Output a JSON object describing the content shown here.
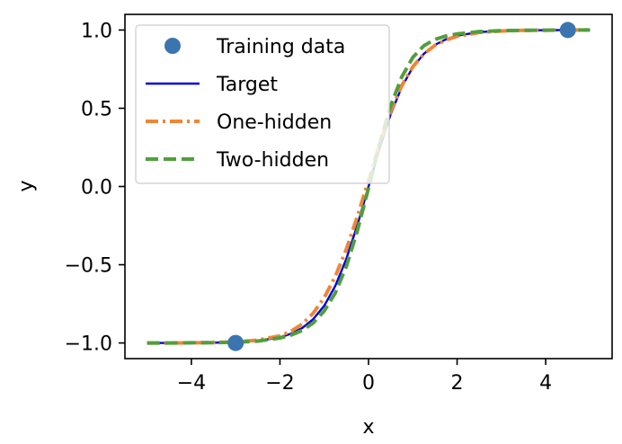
{
  "chart_data": {
    "type": "line",
    "xlabel": "x",
    "ylabel": "y",
    "xlim": [
      -5.5,
      5.5
    ],
    "ylim": [
      -1.1,
      1.1
    ],
    "xticks": [
      -4,
      -2,
      0,
      2,
      4
    ],
    "xtick_labels": [
      "−4",
      "−2",
      "0",
      "2",
      "4"
    ],
    "yticks": [
      -1.0,
      -0.5,
      0.0,
      0.5,
      1.0
    ],
    "ytick_labels": [
      "−1.0",
      "−0.5",
      "0.0",
      "0.5",
      "1.0"
    ],
    "grid": false,
    "legend_position": "upper-left",
    "series": [
      {
        "name": "Training data",
        "kind": "scatter",
        "color": "#3b75af",
        "x": [
          -3.0,
          4.5
        ],
        "y": [
          -1.0,
          1.0
        ]
      },
      {
        "name": "Target",
        "kind": "line",
        "style": "solid",
        "color": "#0000dd",
        "x": [
          -5,
          -4.5,
          -4,
          -3.5,
          -3,
          -2.5,
          -2,
          -1.75,
          -1.5,
          -1.25,
          -1,
          -0.75,
          -0.5,
          -0.25,
          0,
          0.25,
          0.5,
          0.75,
          1,
          1.25,
          1.5,
          1.75,
          2,
          2.5,
          3,
          3.5,
          4,
          4.5,
          5
        ],
        "y": [
          -1.0,
          -1.0,
          -0.999,
          -0.998,
          -0.995,
          -0.987,
          -0.964,
          -0.941,
          -0.905,
          -0.848,
          -0.762,
          -0.635,
          -0.462,
          -0.245,
          0.0,
          0.245,
          0.462,
          0.635,
          0.762,
          0.848,
          0.905,
          0.941,
          0.964,
          0.987,
          0.995,
          0.998,
          0.999,
          1.0,
          1.0
        ]
      },
      {
        "name": "One-hidden",
        "kind": "line",
        "style": "dashdot",
        "color": "#ef8636",
        "x": [
          -5,
          -4.5,
          -4,
          -3.5,
          -3,
          -2.5,
          -2,
          -1.75,
          -1.5,
          -1.25,
          -1,
          -0.75,
          -0.5,
          -0.25,
          0,
          0.25,
          0.5,
          0.75,
          1,
          1.25,
          1.5,
          1.75,
          2,
          2.5,
          3,
          3.5,
          4,
          4.5,
          5
        ],
        "y": [
          -1.0,
          -1.0,
          -0.999,
          -0.997,
          -0.993,
          -0.982,
          -0.955,
          -0.925,
          -0.88,
          -0.81,
          -0.71,
          -0.575,
          -0.4,
          -0.19,
          0.04,
          0.27,
          0.48,
          0.645,
          0.765,
          0.848,
          0.902,
          0.937,
          0.96,
          0.984,
          0.994,
          0.998,
          0.999,
          1.0,
          1.0
        ]
      },
      {
        "name": "Two-hidden",
        "kind": "line",
        "style": "dashed",
        "color": "#519e3e",
        "x": [
          -5,
          -4.5,
          -4,
          -3.5,
          -3,
          -2.5,
          -2,
          -1.75,
          -1.5,
          -1.25,
          -1,
          -0.75,
          -0.5,
          -0.25,
          0,
          0.25,
          0.5,
          0.75,
          1,
          1.25,
          1.5,
          1.75,
          2,
          2.5,
          3,
          3.5,
          4,
          4.5,
          5
        ],
        "y": [
          -1.0,
          -1.0,
          -0.999,
          -0.998,
          -0.995,
          -0.988,
          -0.968,
          -0.95,
          -0.92,
          -0.872,
          -0.795,
          -0.68,
          -0.51,
          -0.28,
          -0.01,
          0.27,
          0.515,
          0.7,
          0.825,
          0.9,
          0.94,
          0.962,
          0.975,
          0.99,
          0.996,
          0.998,
          0.999,
          1.0,
          1.0
        ]
      }
    ]
  }
}
